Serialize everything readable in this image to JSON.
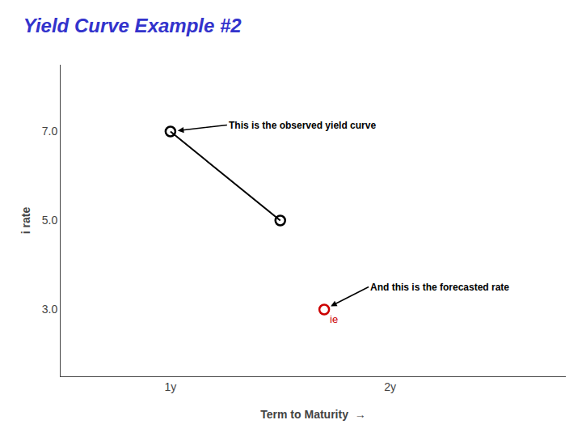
{
  "chart_data": {
    "type": "line",
    "title": "Yield Curve Example #2",
    "title_color": "#3333CC",
    "xlabel": "Term to Maturity  →",
    "ylabel": "i rate",
    "series": [
      {
        "x": [
          1,
          1.5
        ],
        "values": [
          7.0,
          5.0
        ],
        "color": "#000000",
        "marker": "o",
        "line_style": "solid"
      },
      {
        "name": "ie",
        "x": [
          1.7
        ],
        "values": [
          3.0
        ],
        "color": "#CC0000",
        "marker": "o",
        "type": "scatter"
      }
    ],
    "xlim": [
      0.5,
      2.8
    ],
    "xticks": [
      {
        "value": 1,
        "label": "1y"
      },
      {
        "value": 2,
        "label": "2y"
      }
    ],
    "ylim": [
      1.5,
      8.5
    ],
    "yticks": [
      {
        "value": 3.0,
        "label": "3.0"
      },
      {
        "value": 5.0,
        "label": "5.0"
      },
      {
        "value": 7.0,
        "label": "7.0"
      }
    ],
    "grid": false,
    "annotations": [
      {
        "text": "This is the observed yield curve",
        "x": 1,
        "y": 7.0
      },
      {
        "text": "And this is the forecasted rate",
        "x": 1.7,
        "y": 3.0
      }
    ]
  }
}
